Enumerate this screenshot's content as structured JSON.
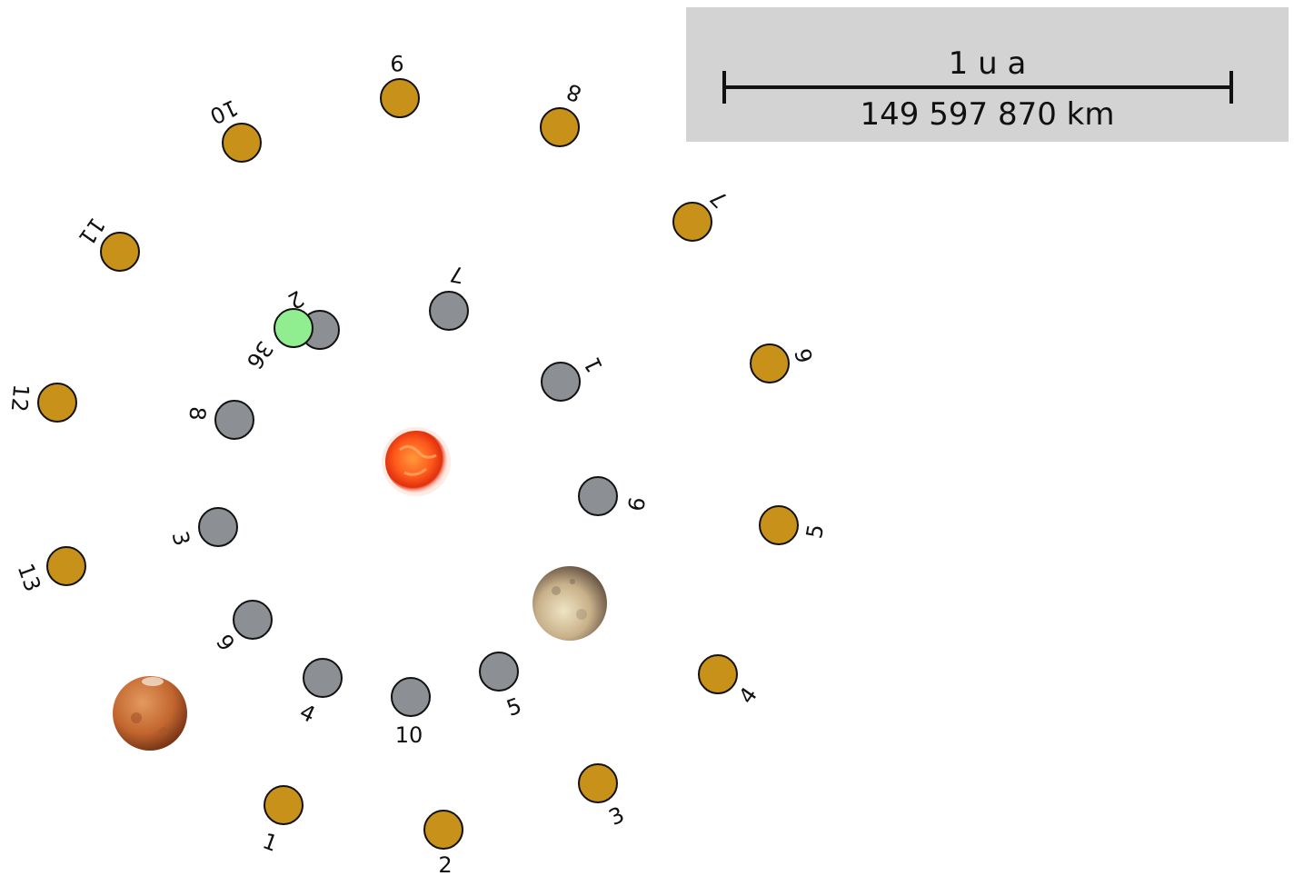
{
  "scale": {
    "top_label": "1 u a",
    "bottom_label": "149 597 870 km"
  },
  "colors": {
    "outer": "#c8921a",
    "inner": "#8c8f93",
    "earth": "#90ee90",
    "sun": "#ff5a1c",
    "stroke": "#111111"
  },
  "outer_markers": [
    "1",
    "2",
    "3",
    "4",
    "5",
    "6",
    "7",
    "8",
    "9",
    "10",
    "11",
    "12",
    "13"
  ],
  "inner_markers": [
    "1",
    "2",
    "3",
    "4",
    "5",
    "6",
    "7",
    "8",
    "9",
    "10"
  ],
  "earth_label": "36",
  "bodies": [
    "sun",
    "mercury",
    "mars"
  ]
}
